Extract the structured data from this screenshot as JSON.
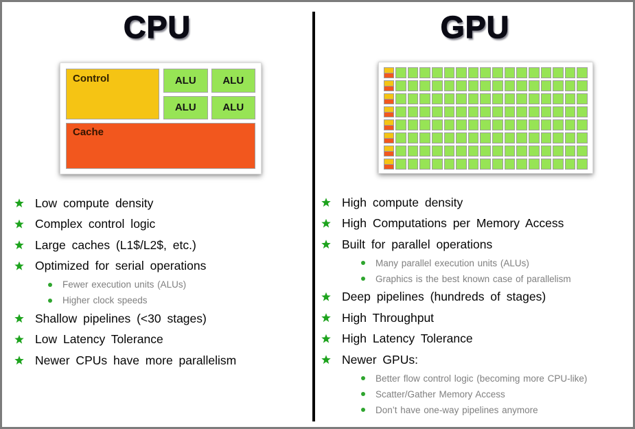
{
  "cpu": {
    "title": "CPU",
    "diagram": {
      "control_label": "Control",
      "alu_label": "ALU",
      "alu_count": 4,
      "cache_label": "Cache"
    },
    "bullets": [
      {
        "level": 1,
        "text": "Low compute density"
      },
      {
        "level": 1,
        "text": "Complex control logic"
      },
      {
        "level": 1,
        "text": "Large caches (L1$/L2$, etc.)"
      },
      {
        "level": 1,
        "text": "Optimized for serial operations"
      },
      {
        "level": 2,
        "text": "Fewer execution units (ALUs)"
      },
      {
        "level": 2,
        "text": "Higher clock speeds"
      },
      {
        "level": 1,
        "text": "Shallow pipelines (<30 stages)"
      },
      {
        "level": 1,
        "text": "Low Latency Tolerance"
      },
      {
        "level": 1,
        "text": "Newer CPUs have more parallelism"
      }
    ]
  },
  "gpu": {
    "title": "GPU",
    "grid": {
      "rows": 8,
      "green_cells_per_row": 16
    },
    "bullets": [
      {
        "level": 1,
        "text": "High compute density"
      },
      {
        "level": 1,
        "text": "High Computations per Memory Access"
      },
      {
        "level": 1,
        "text": "Built for parallel operations"
      },
      {
        "level": 2,
        "text": "Many parallel execution units (ALUs)"
      },
      {
        "level": 2,
        "text": "Graphics is the best known case of parallelism"
      },
      {
        "level": 1,
        "text": "Deep pipelines (hundreds of stages)"
      },
      {
        "level": 1,
        "text": "High Throughput"
      },
      {
        "level": 1,
        "text": "High Latency Tolerance"
      },
      {
        "level": 1,
        "text": "Newer GPUs:"
      },
      {
        "level": 2,
        "text": "Better flow control logic (becoming more CPU-like)"
      },
      {
        "level": 2,
        "text": "Scatter/Gather Memory Access"
      },
      {
        "level": 2,
        "text": "Don’t have one-way pipelines anymore"
      }
    ]
  },
  "icons": {
    "level1_marker": "green-star",
    "level2_marker": "green-dot"
  },
  "colors": {
    "control_yellow": "#f5c414",
    "cache_orange": "#f2571e",
    "alu_green": "#97e455",
    "cell_border_gray": "#9c9c9c",
    "star_green": "#1da31d",
    "dot_green": "#2ea52e",
    "sub_text_gray": "#7f7f7f",
    "divider_black": "#060606",
    "page_border_gray": "#7c7c7c"
  }
}
